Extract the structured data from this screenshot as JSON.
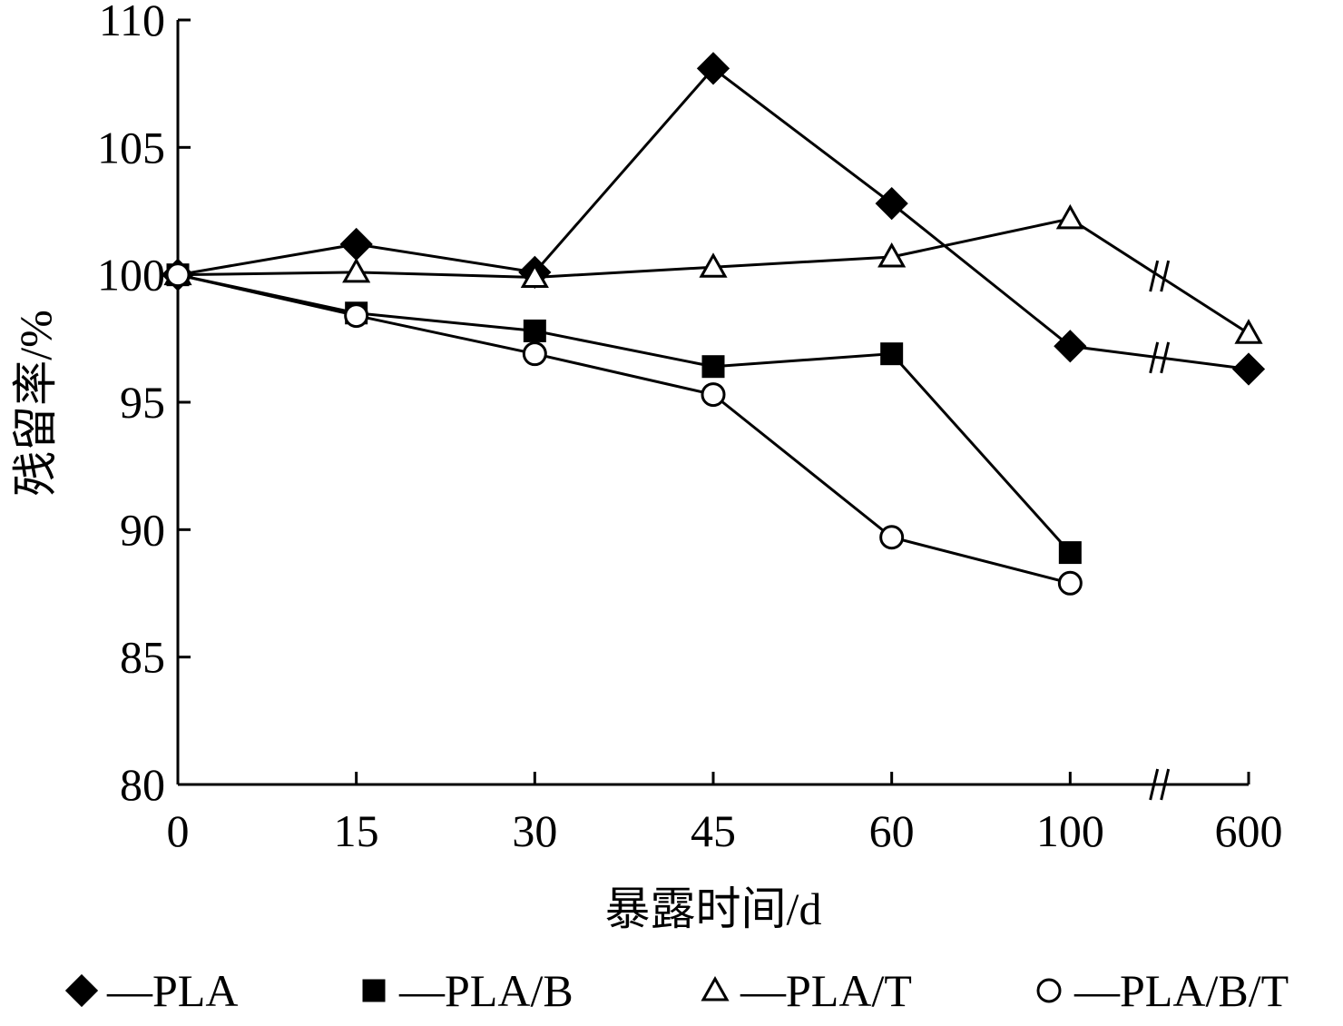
{
  "chart_data": {
    "type": "line",
    "title": "",
    "xlabel": "暴露时间/d",
    "ylabel": "残留率/%",
    "categories": [
      "0",
      "15",
      "30",
      "45",
      "60",
      "100",
      "600"
    ],
    "x_axis_break": "between 100 and 600",
    "ylim": [
      80,
      110
    ],
    "yticks": [
      "80",
      "85",
      "90",
      "95",
      "100",
      "105",
      "110"
    ],
    "grid": false,
    "legend_position": "bottom",
    "series": [
      {
        "name": "PLA",
        "marker": "filled-diamond",
        "values": [
          100,
          101.2,
          100.1,
          108.1,
          102.8,
          97.2,
          96.3
        ]
      },
      {
        "name": "PLA/B",
        "marker": "filled-square",
        "values": [
          100,
          98.5,
          97.8,
          96.4,
          96.9,
          89.1,
          null
        ]
      },
      {
        "name": "PLA/T",
        "marker": "open-triangle",
        "values": [
          100,
          100.1,
          99.9,
          100.3,
          100.7,
          102.2,
          97.7
        ]
      },
      {
        "name": "PLA/B/T",
        "marker": "open-circle",
        "values": [
          100,
          98.4,
          96.9,
          95.3,
          89.7,
          87.9,
          null
        ]
      }
    ],
    "legend": [
      {
        "prefix": "—",
        "name": "PLA"
      },
      {
        "prefix": "—",
        "name": "PLA/B"
      },
      {
        "prefix": "—",
        "name": "PLA/T"
      },
      {
        "prefix": "—",
        "name": "PLA/B/T"
      }
    ],
    "colors": {
      "line": "#000000",
      "marker_fill": "#000000",
      "open_fill": "#ffffff"
    }
  }
}
